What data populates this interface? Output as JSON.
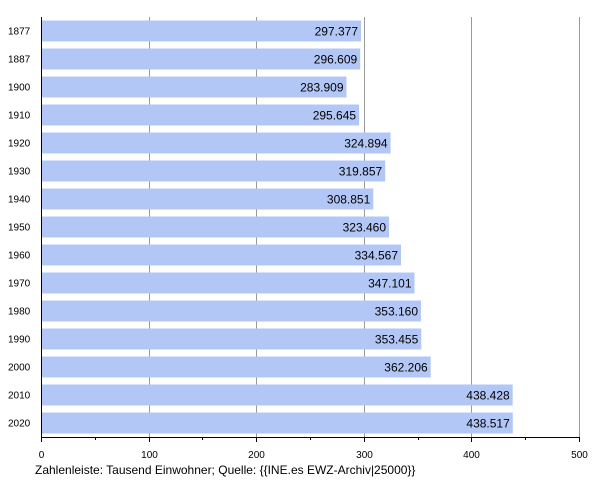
{
  "chart_data": {
    "type": "bar",
    "orientation": "horizontal",
    "categories": [
      "1877",
      "1887",
      "1900",
      "1910",
      "1920",
      "1930",
      "1940",
      "1950",
      "1960",
      "1970",
      "1980",
      "1990",
      "2000",
      "2010",
      "2020"
    ],
    "values": [
      297.377,
      296.609,
      283.909,
      295.645,
      324.894,
      319.857,
      308.851,
      323.46,
      334.567,
      347.101,
      353.16,
      353.455,
      362.206,
      438.428,
      438.517
    ],
    "value_labels": [
      "297.377",
      "296.609",
      "283.909",
      "295.645",
      "324.894",
      "319.857",
      "308.851",
      "323.460",
      "334.567",
      "347.101",
      "353.160",
      "353.455",
      "362.206",
      "438.428",
      "438.517"
    ],
    "xlim": [
      0,
      500
    ],
    "xticks": [
      0,
      100,
      200,
      300,
      400,
      500
    ],
    "grid": true,
    "bar_color": "#b3c7f7",
    "grid_color": "#999999"
  },
  "caption": "Zahlenleiste: Tausend Einwohner; Quelle: {{INE.es EWZ-Archiv|25000}}"
}
